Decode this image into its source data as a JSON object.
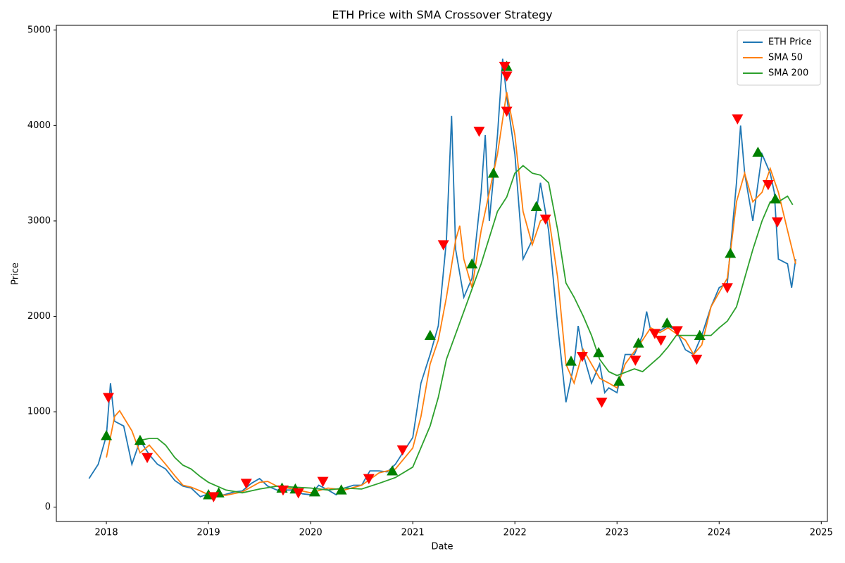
{
  "chart_data": {
    "type": "line",
    "title": "ETH Price with SMA Crossover Strategy",
    "x_label": "Date",
    "y_label": "Price",
    "xlim": [
      2017.51,
      2025.06
    ],
    "xticks": [
      2018,
      2019,
      2020,
      2021,
      2022,
      2023,
      2024,
      2025
    ],
    "ylim": [
      -150,
      5050
    ],
    "yticks": [
      0,
      1000,
      2000,
      3000,
      4000,
      5000
    ],
    "grid": false,
    "legend": "upper right",
    "series": [
      {
        "name": "ETH Price",
        "color": "#1f77b4",
        "x": [
          2017.83,
          2017.92,
          2018.0,
          2018.04,
          2018.08,
          2018.17,
          2018.25,
          2018.33,
          2018.42,
          2018.5,
          2018.58,
          2018.67,
          2018.75,
          2018.83,
          2018.92,
          2019.0,
          2019.08,
          2019.17,
          2019.25,
          2019.33,
          2019.42,
          2019.5,
          2019.58,
          2019.67,
          2019.75,
          2019.83,
          2019.92,
          2020.0,
          2020.08,
          2020.17,
          2020.25,
          2020.33,
          2020.42,
          2020.5,
          2020.58,
          2020.67,
          2020.75,
          2020.83,
          2020.92,
          2021.0,
          2021.08,
          2021.17,
          2021.25,
          2021.33,
          2021.38,
          2021.42,
          2021.5,
          2021.58,
          2021.67,
          2021.71,
          2021.75,
          2021.83,
          2021.88,
          2021.92,
          2022.0,
          2022.08,
          2022.17,
          2022.25,
          2022.33,
          2022.42,
          2022.5,
          2022.58,
          2022.62,
          2022.67,
          2022.75,
          2022.83,
          2022.88,
          2022.92,
          2023.0,
          2023.08,
          2023.17,
          2023.25,
          2023.29,
          2023.33,
          2023.42,
          2023.5,
          2023.58,
          2023.67,
          2023.75,
          2023.83,
          2023.92,
          2024.0,
          2024.08,
          2024.17,
          2024.21,
          2024.25,
          2024.33,
          2024.42,
          2024.5,
          2024.54,
          2024.58,
          2024.67,
          2024.71,
          2024.75
        ],
        "values": [
          300,
          450,
          750,
          1300,
          900,
          850,
          450,
          700,
          550,
          450,
          400,
          280,
          220,
          200,
          110,
          140,
          110,
          135,
          160,
          170,
          250,
          300,
          220,
          180,
          180,
          180,
          140,
          130,
          230,
          180,
          130,
          200,
          230,
          230,
          380,
          380,
          370,
          450,
          600,
          730,
          1300,
          1600,
          1900,
          2800,
          4100,
          2700,
          2200,
          2400,
          3300,
          3900,
          3000,
          3900,
          4700,
          4300,
          3700,
          2600,
          2800,
          3400,
          2900,
          1900,
          1100,
          1500,
          1900,
          1600,
          1300,
          1500,
          1200,
          1250,
          1200,
          1600,
          1600,
          1800,
          2050,
          1850,
          1850,
          1900,
          1850,
          1650,
          1600,
          1800,
          2100,
          2300,
          2350,
          3400,
          4000,
          3500,
          3000,
          3700,
          3500,
          3300,
          2600,
          2550,
          2300,
          2600
        ]
      },
      {
        "name": "SMA 50",
        "color": "#ff7f0e",
        "x": [
          2018.0,
          2018.08,
          2018.13,
          2018.25,
          2018.33,
          2018.42,
          2018.5,
          2018.58,
          2018.67,
          2018.75,
          2018.83,
          2018.92,
          2019.0,
          2019.17,
          2019.33,
          2019.5,
          2019.58,
          2019.67,
          2019.83,
          2020.0,
          2020.17,
          2020.33,
          2020.5,
          2020.67,
          2020.83,
          2021.0,
          2021.08,
          2021.17,
          2021.25,
          2021.33,
          2021.42,
          2021.46,
          2021.5,
          2021.58,
          2021.67,
          2021.75,
          2021.83,
          2021.92,
          2022.0,
          2022.08,
          2022.17,
          2022.25,
          2022.33,
          2022.42,
          2022.5,
          2022.58,
          2022.67,
          2022.75,
          2022.83,
          2022.92,
          2023.0,
          2023.08,
          2023.25,
          2023.33,
          2023.42,
          2023.5,
          2023.67,
          2023.75,
          2023.83,
          2023.92,
          2024.0,
          2024.08,
          2024.17,
          2024.25,
          2024.33,
          2024.42,
          2024.5,
          2024.58,
          2024.67,
          2024.75
        ],
        "values": [
          520,
          950,
          1010,
          800,
          570,
          650,
          550,
          450,
          330,
          230,
          210,
          170,
          130,
          125,
          160,
          260,
          270,
          220,
          190,
          150,
          200,
          180,
          230,
          360,
          400,
          620,
          950,
          1500,
          1750,
          2200,
          2800,
          2950,
          2600,
          2300,
          2900,
          3300,
          3700,
          4350,
          3900,
          3100,
          2750,
          3000,
          3050,
          2400,
          1500,
          1300,
          1650,
          1500,
          1350,
          1300,
          1250,
          1500,
          1750,
          1880,
          1830,
          1880,
          1750,
          1600,
          1700,
          2100,
          2250,
          2400,
          3200,
          3500,
          3200,
          3300,
          3550,
          3300,
          2900,
          2550
        ]
      },
      {
        "name": "SMA 200",
        "color": "#2ca02c",
        "x": [
          2018.33,
          2018.42,
          2018.5,
          2018.58,
          2018.67,
          2018.75,
          2018.83,
          2018.92,
          2019.0,
          2019.17,
          2019.33,
          2019.5,
          2019.67,
          2019.83,
          2020.0,
          2020.17,
          2020.33,
          2020.5,
          2020.67,
          2020.83,
          2021.0,
          2021.17,
          2021.25,
          2021.33,
          2021.5,
          2021.67,
          2021.83,
          2021.92,
          2022.0,
          2022.08,
          2022.17,
          2022.25,
          2022.33,
          2022.42,
          2022.5,
          2022.58,
          2022.67,
          2022.75,
          2022.83,
          2022.92,
          2023.0,
          2023.17,
          2023.25,
          2023.42,
          2023.5,
          2023.58,
          2023.75,
          2023.92,
          2024.0,
          2024.08,
          2024.17,
          2024.25,
          2024.33,
          2024.42,
          2024.5,
          2024.58,
          2024.67,
          2024.72
        ],
        "values": [
          700,
          720,
          720,
          650,
          520,
          440,
          400,
          320,
          260,
          180,
          150,
          190,
          220,
          210,
          200,
          180,
          200,
          190,
          250,
          310,
          420,
          850,
          1150,
          1550,
          2050,
          2550,
          3100,
          3250,
          3500,
          3580,
          3500,
          3480,
          3400,
          2900,
          2350,
          2200,
          2000,
          1800,
          1550,
          1420,
          1380,
          1450,
          1420,
          1580,
          1680,
          1800,
          1800,
          1800,
          1880,
          1950,
          2100,
          2400,
          2700,
          3000,
          3200,
          3200,
          3260,
          3170
        ]
      }
    ],
    "buy_signals": {
      "color": "#008000",
      "x": [
        2018.0,
        2018.33,
        2019.0,
        2019.1,
        2019.72,
        2019.85,
        2020.04,
        2020.3,
        2020.8,
        2021.17,
        2021.58,
        2021.79,
        2021.92,
        2022.21,
        2022.55,
        2022.82,
        2023.02,
        2023.21,
        2023.49,
        2023.81,
        2024.11,
        2024.38,
        2024.55
      ],
      "values": [
        750,
        700,
        130,
        150,
        200,
        190,
        160,
        180,
        380,
        1800,
        2550,
        3500,
        4620,
        3150,
        1530,
        1620,
        1320,
        1720,
        1930,
        1800,
        2660,
        3720,
        3230
      ]
    },
    "sell_signals": {
      "color": "#ff0000",
      "x": [
        2018.02,
        2018.4,
        2019.05,
        2019.37,
        2019.73,
        2019.88,
        2020.12,
        2020.57,
        2020.9,
        2021.3,
        2021.65,
        2021.9,
        2021.92,
        2021.92,
        2022.3,
        2022.66,
        2022.85,
        2023.18,
        2023.37,
        2023.43,
        2023.59,
        2023.78,
        2024.08,
        2024.18,
        2024.48,
        2024.57
      ],
      "values": [
        1150,
        520,
        110,
        250,
        180,
        150,
        270,
        300,
        600,
        2750,
        3940,
        4620,
        4520,
        4150,
        3020,
        1580,
        1100,
        1540,
        1820,
        1750,
        1850,
        1550,
        2300,
        4070,
        3380,
        2990
      ]
    }
  }
}
